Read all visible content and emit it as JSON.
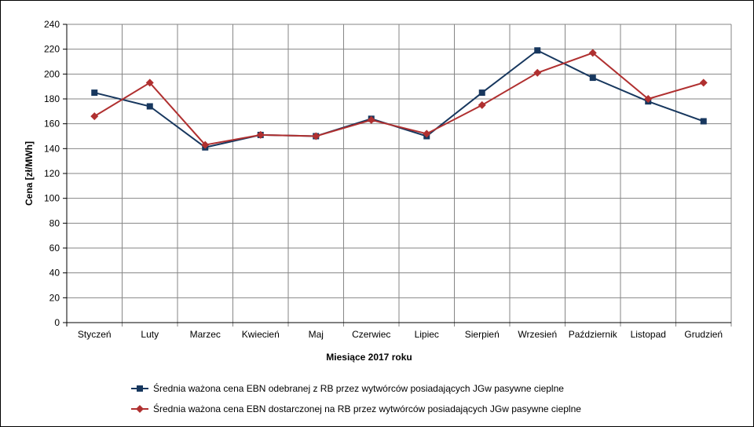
{
  "chart_data": {
    "type": "line",
    "title": "",
    "xlabel": "Miesiące 2017  roku",
    "ylabel": "Cena [zł/MWh]",
    "ylim": [
      0,
      240
    ],
    "ytick_step": 20,
    "grid": true,
    "legend_position": "bottom",
    "categories": [
      "Styczeń",
      "Luty",
      "Marzec",
      "Kwiecień",
      "Maj",
      "Czerwiec",
      "Lipiec",
      "Sierpień",
      "Wrzesień",
      "Październik",
      "Listopad",
      "Grudzień"
    ],
    "series": [
      {
        "name": "Średnia ważona cena EBN odebranej z RB przez wytwórców posiadających JGw pasywne cieplne",
        "color": "#17375e",
        "marker": "square",
        "values": [
          185,
          174,
          141,
          151,
          150,
          164,
          150,
          185,
          219,
          197,
          178,
          162
        ]
      },
      {
        "name": "Średnia ważona cena EBN dostarczonej na RB przez wytwórców posiadających JGw pasywne cieplne",
        "color": "#b03030",
        "marker": "diamond",
        "values": [
          166,
          193,
          143,
          151,
          150,
          163,
          152,
          175,
          201,
          217,
          180,
          193
        ]
      }
    ]
  }
}
